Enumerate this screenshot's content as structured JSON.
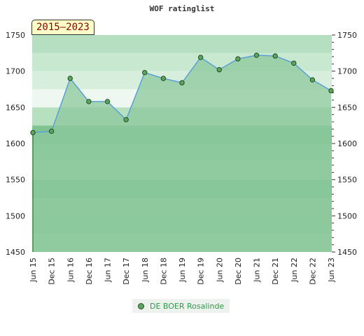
{
  "chart_data": {
    "type": "area",
    "title": "WOF ratinglist",
    "badge": "2015–2023",
    "x": [
      "Jun 15",
      "Dec 15",
      "Jun 16",
      "Dec 16",
      "Jun 17",
      "Dec 17",
      "Jun 18",
      "Dec 18",
      "Jun 19",
      "Dec 19",
      "Jun 20",
      "Dec 20",
      "Jun 21",
      "Dec 21",
      "Jun 22",
      "Dec 22",
      "Jun 23"
    ],
    "series": [
      {
        "name": "DE BOER Rosalinde",
        "values": [
          1615,
          1617,
          1690,
          1658,
          1658,
          1633,
          1698,
          1690,
          1684,
          1719,
          1702,
          1717,
          1722,
          1721,
          1711,
          1688,
          1673
        ]
      }
    ],
    "ylim": [
      1450,
      1750
    ],
    "yticks": [
      1450,
      1500,
      1550,
      1600,
      1650,
      1700,
      1750
    ],
    "legend_position": "bottom-center",
    "colors": {
      "line": "#5aa0d8",
      "fill": "#8cc89c",
      "marker": "#5fa35f"
    }
  }
}
